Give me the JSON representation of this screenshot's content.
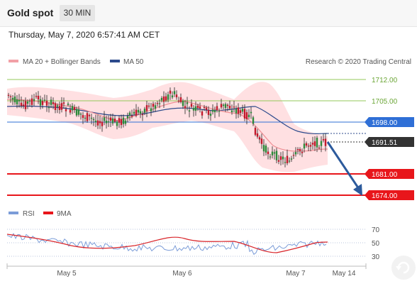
{
  "header": {
    "title": "Gold spot",
    "timeframe": "30 MIN",
    "datetime": "Thursday, May 7, 2020 6:57:41 AM CET"
  },
  "legend": {
    "ma20": "MA 20 + Bollinger Bands",
    "ma50": "MA 50",
    "credit": "Research © 2020 Trading Central",
    "rsi": "RSI",
    "ma9": "9MA"
  },
  "levels": [
    {
      "value": "1712.00",
      "color": "#94c95b"
    },
    {
      "value": "1705.00",
      "color": "#94c95b"
    },
    {
      "value": "1698.00",
      "color": "#2f6fd6"
    },
    {
      "value": "1691.51",
      "color": "#333333"
    },
    {
      "value": "1681.00",
      "color": "#e8161b"
    },
    {
      "value": "1674.00",
      "color": "#e8161b"
    }
  ],
  "rsi_axis": [
    "70",
    "50",
    "30"
  ],
  "x_axis": [
    "May 5",
    "May 6",
    "May 7",
    "May 14"
  ],
  "colors": {
    "up": "#2c8a3a",
    "down": "#c2182b",
    "band": "#ffe0e2",
    "ma50": "#2c4a8c",
    "ma20": "#ef8f95"
  }
}
